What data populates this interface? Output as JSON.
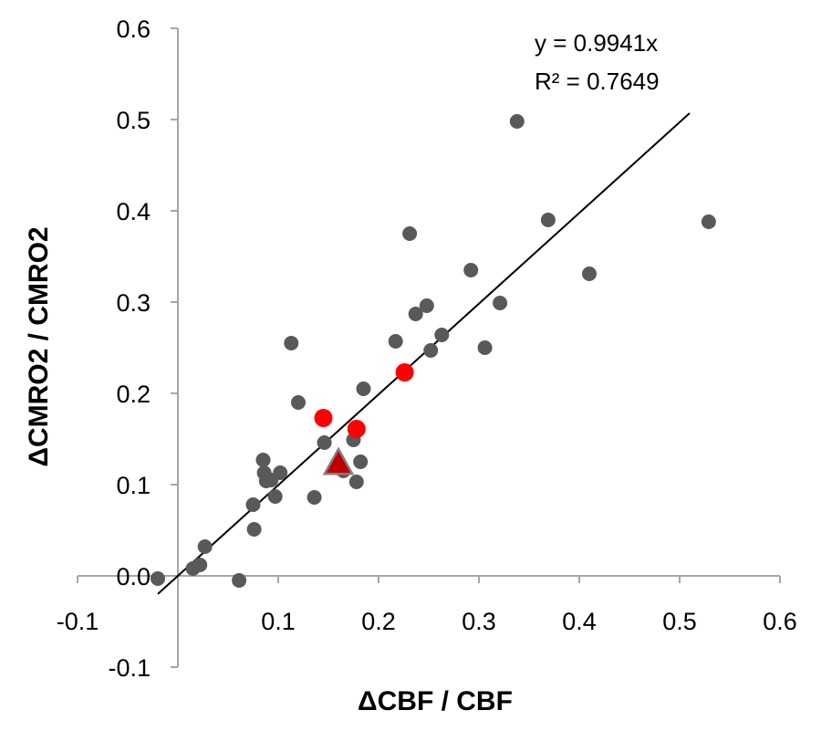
{
  "chart_data": {
    "type": "scatter",
    "title": "",
    "xlabel": "ΔCBF / CBF",
    "ylabel": "ΔCMRO2 / CMRO2",
    "xlim": [
      -0.1,
      0.6
    ],
    "ylim": [
      -0.1,
      0.6
    ],
    "x_ticks": [
      "-0.1",
      "0",
      "0.1",
      "0.2",
      "0.3",
      "0.4",
      "0.5",
      "0.6"
    ],
    "y_ticks": [
      "-0.1",
      "0.0",
      "0.1",
      "0.2",
      "0.3",
      "0.4",
      "0.5",
      "0.6"
    ],
    "grid": false,
    "legend": "none",
    "series": [
      {
        "marker": "circle",
        "color": "#595959",
        "points": [
          [
            -0.02,
            -0.003
          ],
          [
            0.015,
            0.008
          ],
          [
            0.022,
            0.012
          ],
          [
            0.027,
            0.032
          ],
          [
            0.061,
            -0.005
          ],
          [
            0.075,
            0.078
          ],
          [
            0.076,
            0.051
          ],
          [
            0.085,
            0.127
          ],
          [
            0.086,
            0.113
          ],
          [
            0.088,
            0.104
          ],
          [
            0.093,
            0.105
          ],
          [
            0.097,
            0.087
          ],
          [
            0.102,
            0.113
          ],
          [
            0.113,
            0.255
          ],
          [
            0.12,
            0.19
          ],
          [
            0.136,
            0.086
          ],
          [
            0.146,
            0.146
          ],
          [
            0.165,
            0.115
          ],
          [
            0.175,
            0.149
          ],
          [
            0.178,
            0.103
          ],
          [
            0.182,
            0.125
          ],
          [
            0.185,
            0.205
          ],
          [
            0.217,
            0.257
          ],
          [
            0.231,
            0.375
          ],
          [
            0.237,
            0.287
          ],
          [
            0.248,
            0.296
          ],
          [
            0.252,
            0.247
          ],
          [
            0.263,
            0.264
          ],
          [
            0.292,
            0.335
          ],
          [
            0.306,
            0.25
          ],
          [
            0.321,
            0.299
          ],
          [
            0.338,
            0.498
          ],
          [
            0.369,
            0.39
          ],
          [
            0.41,
            0.331
          ],
          [
            0.529,
            0.388
          ]
        ]
      },
      {
        "marker": "circle",
        "color": "#ff0000",
        "points": [
          [
            0.145,
            0.173
          ],
          [
            0.178,
            0.161
          ],
          [
            0.226,
            0.223
          ]
        ]
      },
      {
        "marker": "triangle",
        "color": "#c00000",
        "stroke": "#7f7f7f",
        "points": [
          [
            0.16,
            0.123
          ]
        ]
      }
    ],
    "trendline": {
      "slope": 0.9941,
      "intercept": 0,
      "x_range": [
        -0.02,
        0.51
      ]
    },
    "annotations": [
      "y = 0.9941x",
      "R² = 0.7649"
    ]
  }
}
